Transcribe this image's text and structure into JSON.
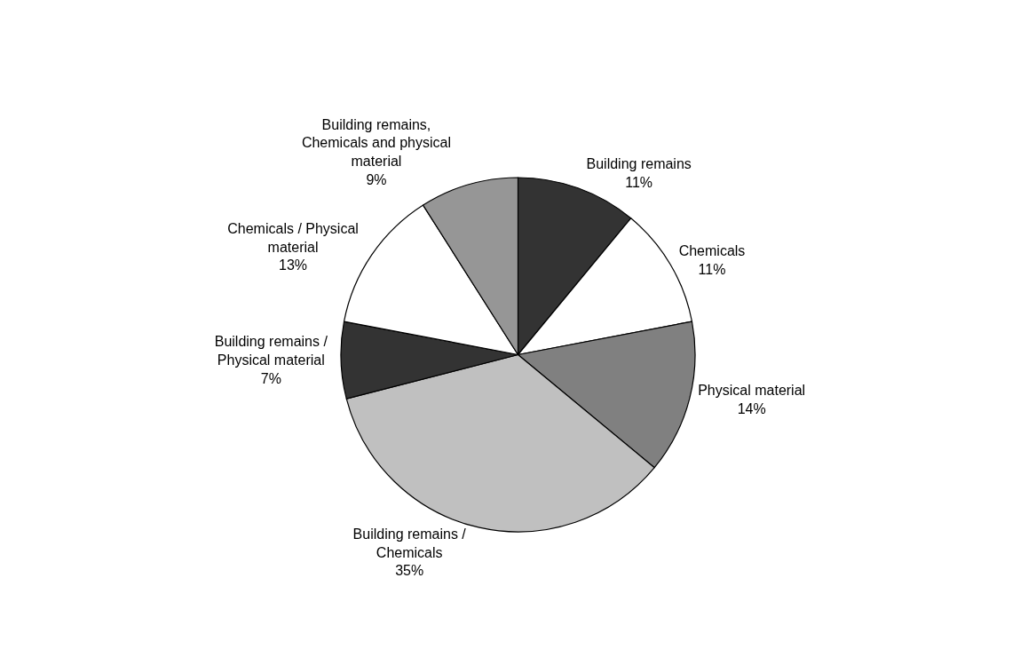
{
  "chart_data": {
    "type": "pie",
    "categories": [
      "Building remains",
      "Chemicals",
      "Physical material",
      "Building remains / Chemicals",
      "Building remains / Physical material",
      "Chemicals / Physical material",
      "Building remains, Chemicals and physical material"
    ],
    "values": [
      11,
      11,
      14,
      35,
      7,
      13,
      9
    ],
    "value_labels": [
      "11%",
      "11%",
      "14%",
      "35%",
      "7%",
      "13%",
      "9%"
    ],
    "colors": [
      "#333333",
      "#ffffff",
      "#808080",
      "#c0c0c0",
      "#333333",
      "#ffffff",
      "#969696"
    ],
    "legend": false
  }
}
